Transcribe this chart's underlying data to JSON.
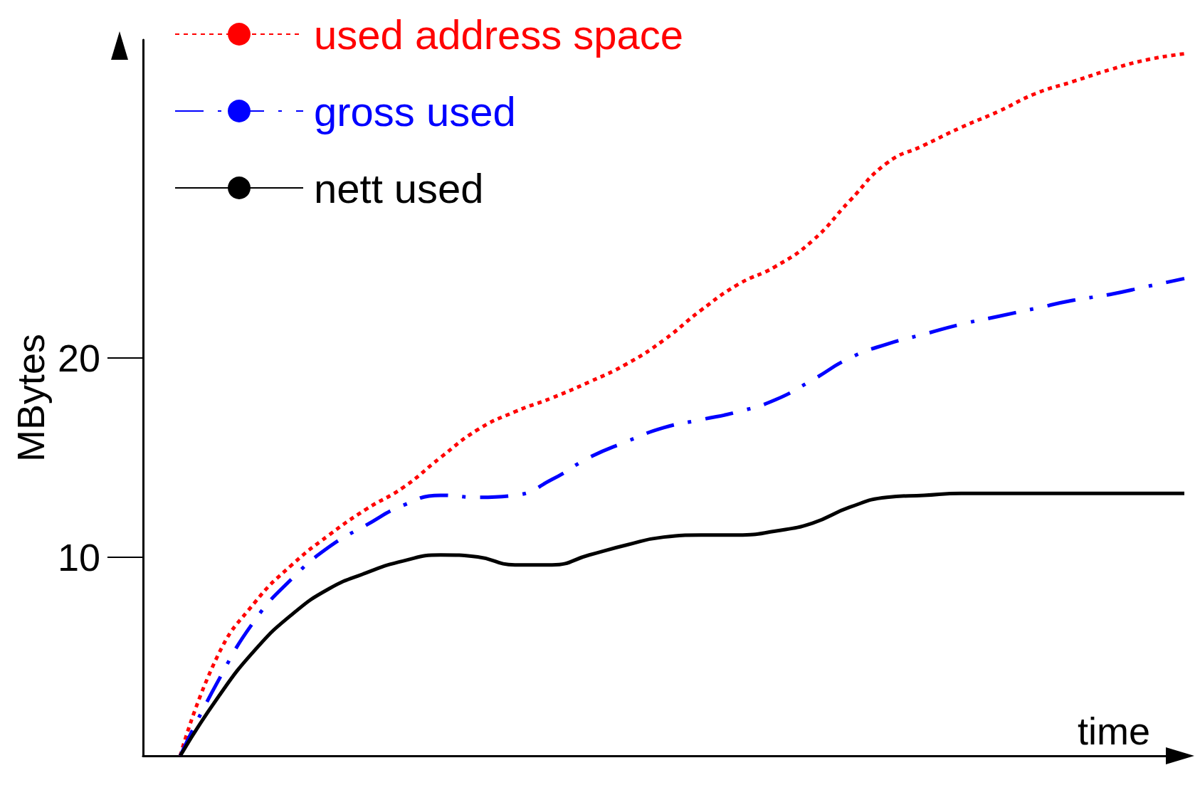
{
  "chart_data": {
    "type": "line",
    "xlabel": "time",
    "ylabel": "MBytes",
    "categories": [
      null,
      null,
      null,
      null,
      null,
      null,
      null,
      null,
      null,
      null,
      null,
      null,
      null,
      null,
      null,
      null,
      null,
      null,
      null,
      null,
      null,
      null,
      null,
      null,
      null,
      null,
      null,
      null,
      null
    ],
    "series": [
      {
        "name": "used address space",
        "color": "#ff0000",
        "line_style": "dotted",
        "values": [
          null,
          0,
          5.0,
          7.7,
          9.6,
          11.1,
          12.4,
          13.5,
          15.0,
          16.4,
          17.3,
          18.0,
          18.8,
          19.7,
          20.9,
          22.4,
          23.7,
          24.6,
          25.9,
          27.9,
          29.8,
          30.7,
          31.6,
          32.4,
          33.3,
          33.9,
          34.5,
          35.0,
          35.3
        ]
      },
      {
        "name": "gross used",
        "color": "#0000ff",
        "line_style": "dashdot",
        "values": [
          null,
          0,
          3.7,
          6.8,
          8.9,
          10.5,
          11.6,
          12.6,
          13.1,
          13.0,
          13.1,
          13.9,
          15.0,
          15.8,
          16.5,
          16.9,
          17.3,
          17.9,
          18.9,
          20.0,
          20.7,
          21.2,
          21.7,
          22.1,
          22.5,
          22.9,
          23.2,
          23.6,
          24.0
        ]
      },
      {
        "name": "nett used",
        "color": "#000000",
        "line_style": "solid",
        "values": [
          null,
          0,
          2.9,
          5.3,
          7.1,
          8.4,
          9.2,
          9.8,
          10.1,
          10.0,
          9.6,
          9.6,
          10.1,
          10.6,
          11.0,
          11.1,
          11.1,
          11.3,
          11.7,
          12.5,
          13.0,
          13.1,
          13.2,
          13.2,
          13.2,
          13.2,
          13.2,
          13.2,
          13.2
        ]
      }
    ],
    "ylim": [
      0,
      36
    ],
    "yticks": [
      10,
      20
    ],
    "grid": false,
    "legend": "top left",
    "marker": "none",
    "tick_labels": "y"
  }
}
